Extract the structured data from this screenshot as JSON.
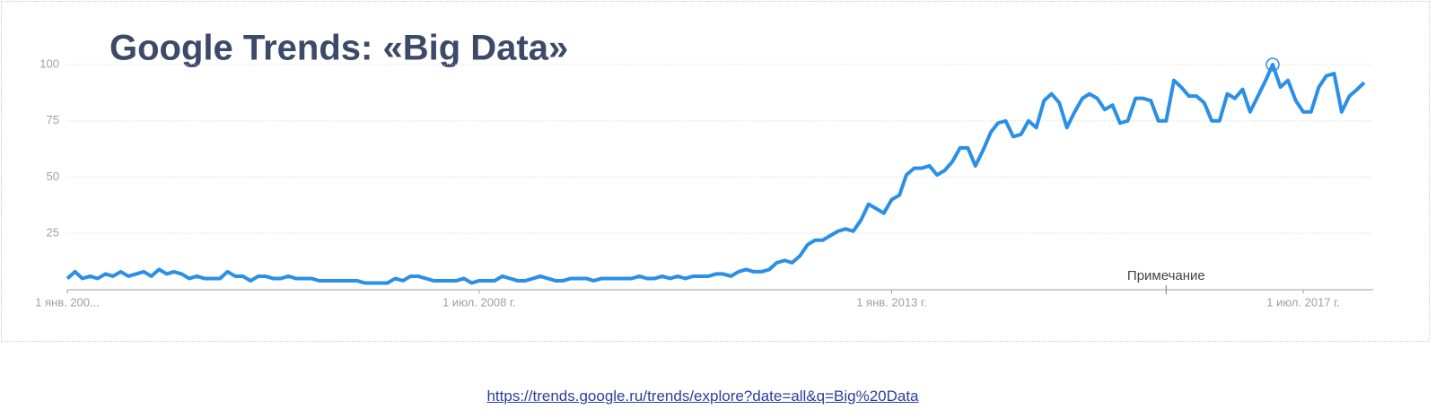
{
  "chart_data": {
    "type": "line",
    "title": "Google Trends: «Big Data»",
    "x": [
      "2004-01-01",
      "2004-02-01",
      "2004-03-01",
      "2004-04-01",
      "2004-05-01",
      "2004-06-01",
      "2004-07-01",
      "2004-08-01",
      "2004-09-01",
      "2004-10-01",
      "2004-11-01",
      "2004-12-01",
      "2005-01-01",
      "2005-02-01",
      "2005-03-01",
      "2005-04-01",
      "2005-05-01",
      "2005-06-01",
      "2005-07-01",
      "2005-08-01",
      "2005-09-01",
      "2005-10-01",
      "2005-11-01",
      "2005-12-01",
      "2006-01-01",
      "2006-02-01",
      "2006-03-01",
      "2006-04-01",
      "2006-05-01",
      "2006-06-01",
      "2006-07-01",
      "2006-08-01",
      "2006-09-01",
      "2006-10-01",
      "2006-11-01",
      "2006-12-01",
      "2007-01-01",
      "2007-02-01",
      "2007-03-01",
      "2007-04-01",
      "2007-05-01",
      "2007-06-01",
      "2007-07-01",
      "2007-08-01",
      "2007-09-01",
      "2007-10-01",
      "2007-11-01",
      "2007-12-01",
      "2008-01-01",
      "2008-02-01",
      "2008-03-01",
      "2008-04-01",
      "2008-05-01",
      "2008-06-01",
      "2008-07-01",
      "2008-08-01",
      "2008-09-01",
      "2008-10-01",
      "2008-11-01",
      "2008-12-01",
      "2009-01-01",
      "2009-02-01",
      "2009-03-01",
      "2009-04-01",
      "2009-05-01",
      "2009-06-01",
      "2009-07-01",
      "2009-08-01",
      "2009-09-01",
      "2009-10-01",
      "2009-11-01",
      "2009-12-01",
      "2010-01-01",
      "2010-02-01",
      "2010-03-01",
      "2010-04-01",
      "2010-05-01",
      "2010-06-01",
      "2010-07-01",
      "2010-08-01",
      "2010-09-01",
      "2010-10-01",
      "2010-11-01",
      "2010-12-01",
      "2011-01-01",
      "2011-02-01",
      "2011-03-01",
      "2011-04-01",
      "2011-05-01",
      "2011-06-01",
      "2011-07-01",
      "2011-08-01",
      "2011-09-01",
      "2011-10-01",
      "2011-11-01",
      "2011-12-01",
      "2012-01-01",
      "2012-02-01",
      "2012-03-01",
      "2012-04-01",
      "2012-05-01",
      "2012-06-01",
      "2012-07-01",
      "2012-08-01",
      "2012-09-01",
      "2012-10-01",
      "2012-11-01",
      "2012-12-01",
      "2013-01-01",
      "2013-02-01",
      "2013-03-01",
      "2013-04-01",
      "2013-05-01",
      "2013-06-01",
      "2013-07-01",
      "2013-08-01",
      "2013-09-01",
      "2013-10-01",
      "2013-11-01",
      "2013-12-01",
      "2014-01-01",
      "2014-02-01",
      "2014-03-01",
      "2014-04-01",
      "2014-05-01",
      "2014-06-01",
      "2014-07-01",
      "2014-08-01",
      "2014-09-01",
      "2014-10-01",
      "2014-11-01",
      "2014-12-01",
      "2015-01-01",
      "2015-02-01",
      "2015-03-01",
      "2015-04-01",
      "2015-05-01",
      "2015-06-01",
      "2015-07-01",
      "2015-08-01",
      "2015-09-01",
      "2015-10-01",
      "2015-11-01",
      "2015-12-01",
      "2016-01-01",
      "2016-02-01",
      "2016-03-01",
      "2016-04-01",
      "2016-05-01",
      "2016-06-01",
      "2016-07-01",
      "2016-08-01",
      "2016-09-01",
      "2016-10-01",
      "2016-11-01",
      "2016-12-01",
      "2017-01-01",
      "2017-02-01",
      "2017-03-01",
      "2017-04-01",
      "2017-05-01",
      "2017-06-01",
      "2017-07-01",
      "2017-08-01",
      "2017-09-01",
      "2017-10-01",
      "2017-11-01",
      "2017-12-01",
      "2018-01-01",
      "2018-02-01",
      "2018-03-01"
    ],
    "series": [
      {
        "color": "#2a8fe6",
        "values": [
          5,
          8,
          5,
          6,
          5,
          7,
          6,
          8,
          6,
          7,
          8,
          6,
          9,
          7,
          8,
          7,
          5,
          6,
          5,
          5,
          5,
          8,
          6,
          6,
          4,
          6,
          6,
          5,
          5,
          6,
          5,
          5,
          5,
          4,
          4,
          4,
          4,
          4,
          4,
          3,
          3,
          3,
          3,
          5,
          4,
          6,
          6,
          5,
          4,
          4,
          4,
          4,
          5,
          3,
          4,
          4,
          4,
          6,
          5,
          4,
          4,
          5,
          6,
          5,
          4,
          4,
          5,
          5,
          5,
          4,
          5,
          5,
          5,
          5,
          5,
          6,
          5,
          5,
          6,
          5,
          6,
          5,
          6,
          6,
          6,
          7,
          7,
          6,
          8,
          9,
          8,
          8,
          9,
          12,
          13,
          12,
          15,
          20,
          22,
          22,
          24,
          26,
          27,
          26,
          31,
          38,
          36,
          34,
          40,
          42,
          51,
          54,
          54,
          55,
          51,
          53,
          57,
          63,
          63,
          55,
          62,
          70,
          74,
          75,
          68,
          69,
          75,
          72,
          84,
          87,
          83,
          72,
          79,
          85,
          87,
          85,
          80,
          82,
          74,
          75,
          85,
          85,
          84,
          75,
          75,
          93,
          90,
          86,
          86,
          83,
          75,
          75,
          87,
          85,
          89,
          79,
          86,
          93,
          100,
          90,
          93,
          84,
          79,
          79,
          90,
          95,
          96,
          79,
          86,
          89,
          92
        ]
      }
    ],
    "xlim": [
      "2004-01-01",
      "2018-03-01"
    ],
    "xticks": [
      {
        "value": "2004-01-01",
        "label": "1 янв. 200..."
      },
      {
        "value": "2008-07-01",
        "label": "1 июл. 2008 г."
      },
      {
        "value": "2013-01-01",
        "label": "1 янв. 2013 г."
      },
      {
        "value": "2017-07-01",
        "label": "1 июл. 2017 г."
      }
    ],
    "ylim": [
      0,
      100
    ],
    "yticks": [
      25,
      50,
      75,
      100
    ],
    "grid": true,
    "annotations": [
      {
        "text": "Примечание",
        "x": "2016-01-01"
      }
    ]
  },
  "source_url": "https://trends.google.ru/trends/explore?date=all&q=Big%20Data"
}
